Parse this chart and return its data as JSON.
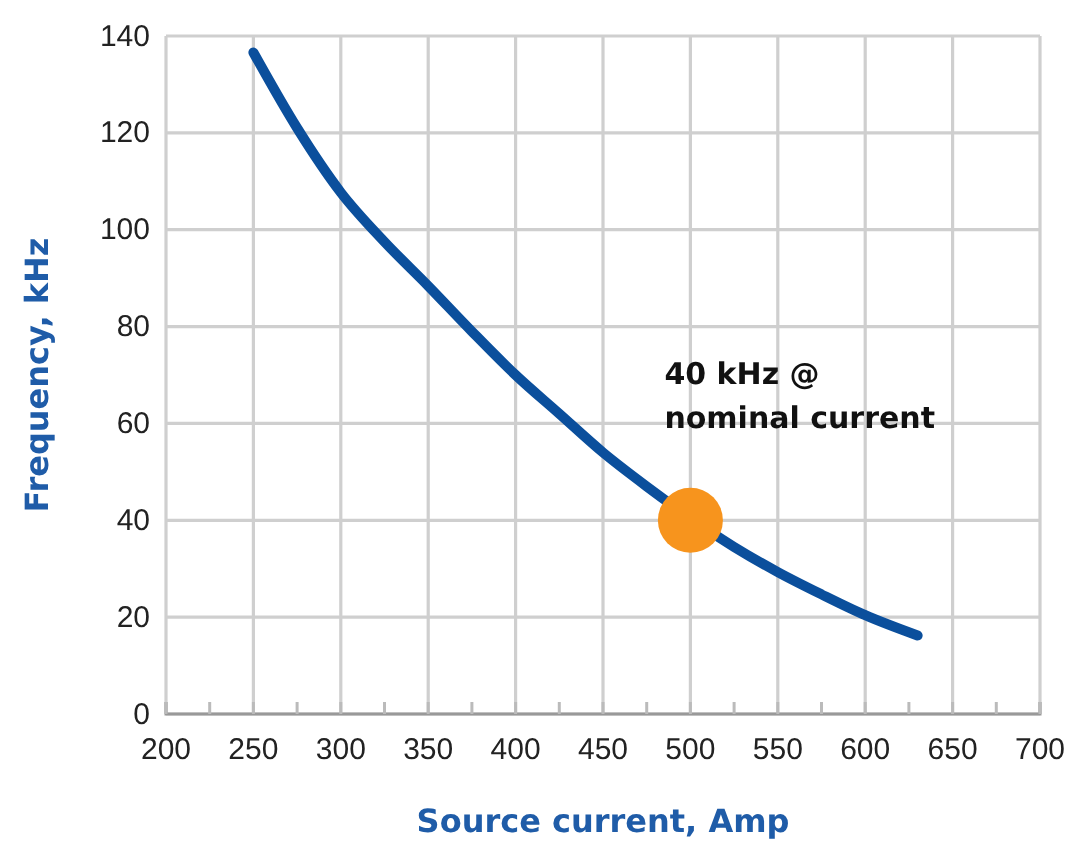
{
  "chart_data": {
    "type": "line",
    "xlabel": "Source current, Amp",
    "ylabel": "Frequency, kHz",
    "xlim": [
      200,
      700
    ],
    "ylim": [
      0,
      140
    ],
    "xticks": [
      200,
      {
        "value": 225,
        "label": null
      },
      250,
      {
        "value": 275,
        "label": null
      },
      300,
      {
        "value": 325,
        "label": null
      },
      350,
      {
        "value": 375,
        "label": null
      },
      400,
      {
        "value": 425,
        "label": null
      },
      450,
      {
        "value": 475,
        "label": null
      },
      500,
      {
        "value": 525,
        "label": null
      },
      550,
      {
        "value": 575,
        "label": null
      },
      600,
      {
        "value": 625,
        "label": null
      },
      650,
      {
        "value": 675,
        "label": null
      },
      700
    ],
    "yticks": [
      0,
      20,
      40,
      60,
      80,
      100,
      120,
      140
    ],
    "grid": true,
    "series": [
      {
        "color": "#0b4f9c",
        "x": [
          250,
          275,
          300,
          325,
          350,
          375,
          400,
          425,
          450,
          475,
          525,
          550,
          575,
          600,
          630
        ],
        "values": [
          136.6,
          121,
          107.7,
          97.5,
          88.4,
          79,
          70,
          62,
          54,
          47,
          34.5,
          29.3,
          24.7,
          20.4,
          16.2
        ]
      },
      {
        "type": "scatter",
        "color": "#f7941d",
        "marker": "circle",
        "x": [
          500
        ],
        "values": [
          40
        ]
      }
    ],
    "annotations": [
      {
        "text": "40 kHz @ nominal current",
        "x": 500,
        "y": 40
      }
    ]
  }
}
